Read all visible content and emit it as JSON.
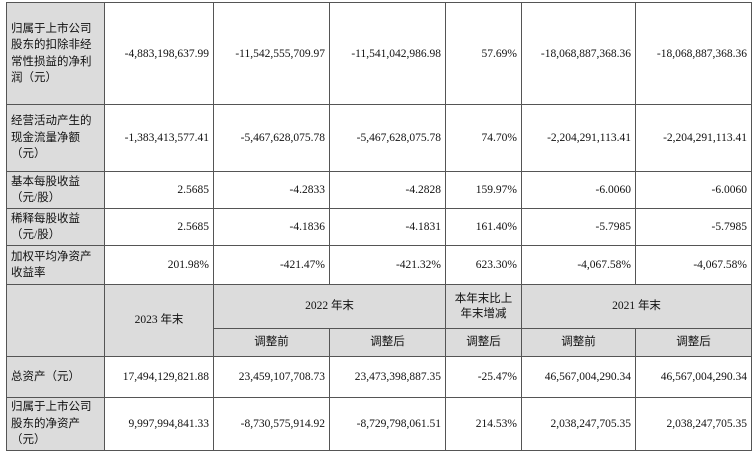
{
  "rows_top": [
    {
      "label": "归属于上市公司股东的扣除非经常性损益的净利润（元）",
      "values": [
        "-4,883,198,637.99",
        "-11,542,555,709.97",
        "-11,541,042,986.98",
        "57.69%",
        "-18,068,887,368.36",
        "-18,068,887,368.36"
      ]
    },
    {
      "label": "经营活动产生的现金流量净额（元）",
      "values": [
        "-1,383,413,577.41",
        "-5,467,628,075.78",
        "-5,467,628,075.78",
        "74.70%",
        "-2,204,291,113.41",
        "-2,204,291,113.41"
      ]
    },
    {
      "label": "基本每股收益（元/股）",
      "values": [
        "2.5685",
        "-4.2833",
        "-4.2828",
        "159.97%",
        "-6.0060",
        "-6.0060"
      ]
    },
    {
      "label": "稀释每股收益（元/股）",
      "values": [
        "2.5685",
        "-4.1836",
        "-4.1831",
        "161.40%",
        "-5.7985",
        "-5.7985"
      ]
    },
    {
      "label": "加权平均净资产收益率",
      "values": [
        "201.98%",
        "-421.47%",
        "-421.32%",
        "623.30%",
        "-4,067.58%",
        "-4,067.58%"
      ]
    }
  ],
  "header": {
    "year_2023": "2023 年末",
    "year_2022": "2022 年末",
    "change": "本年末比上年末增减",
    "year_2021": "2021 年末",
    "before_2022": "调整前",
    "after_2022": "调整后",
    "change_after": "调整后",
    "before_2021": "调整前",
    "after_2021": "调整后"
  },
  "rows_bottom": [
    {
      "label": "总资产（元）",
      "values": [
        "17,494,129,821.88",
        "23,459,107,708.73",
        "23,473,398,887.35",
        "-25.47%",
        "46,567,004,290.34",
        "46,567,004,290.34"
      ]
    },
    {
      "label": "归属于上市公司股东的净资产（元）",
      "values": [
        "9,997,994,841.33",
        "-8,730,575,914.92",
        "-8,729,798,061.51",
        "214.53%",
        "2,038,247,705.35",
        "2,038,247,705.35"
      ]
    }
  ]
}
